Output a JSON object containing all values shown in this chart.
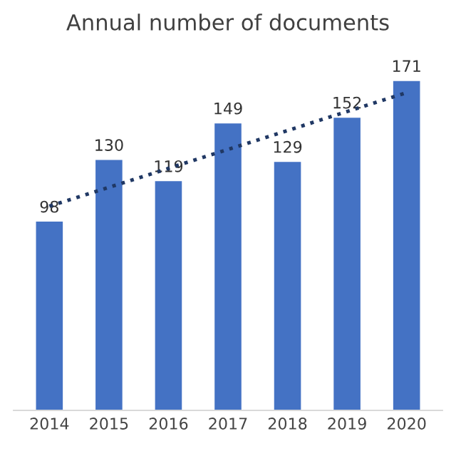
{
  "chart_data": {
    "type": "bar",
    "title": "Annual number of documents",
    "categories": [
      "2014",
      "2015",
      "2016",
      "2017",
      "2018",
      "2019",
      "2020"
    ],
    "series": [
      {
        "color": "#4472c4",
        "values": [
          98,
          130,
          119,
          149,
          129,
          152,
          171
        ]
      },
      {
        "type": "line",
        "color": "#203864",
        "values": [
          106,
          null,
          null,
          null,
          null,
          null,
          165
        ],
        "value_labels": [
          null,
          null,
          null,
          null,
          null,
          null,
          null
        ],
        "line_style": "dotted"
      }
    ],
    "data_labels": true,
    "tick_labels": "x",
    "grid": false,
    "legend": false
  }
}
